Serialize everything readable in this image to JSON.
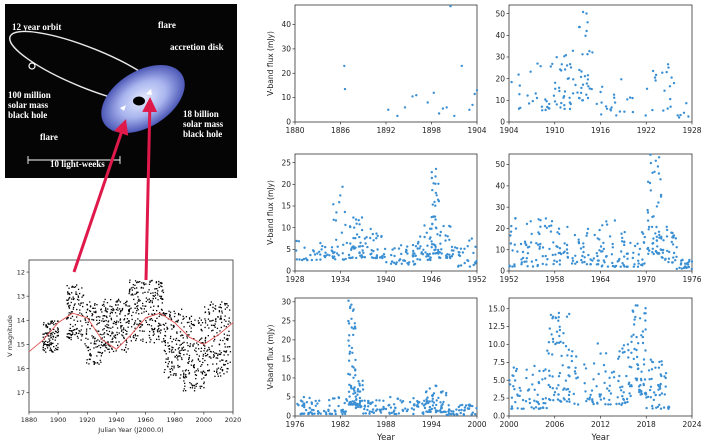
{
  "diagram": {
    "labels": {
      "orbit": "12 year orbit",
      "flare_top": "flare",
      "accretion_disk": "accretion disk",
      "small_bh_1": "100 million",
      "small_bh_2": "solar mass",
      "small_bh_3": "black hole",
      "big_bh_1": "18 billion",
      "big_bh_2": "solar mass",
      "big_bh_3": "black hole",
      "flare_left": "flare",
      "scale": "10 light-weeks"
    }
  },
  "colors": {
    "point": "#3a8fd3",
    "arrow": "#e0194b",
    "hist_point": "#000000",
    "model_curve": "#e05050",
    "diagram_bg": "#050505",
    "disk": "#9aa6e6"
  },
  "chart_data": [
    {
      "type": "scatter",
      "panel": "historical",
      "xlabel": "Julian Year (J2000.0)",
      "ylabel": "V magnitude",
      "xlim": [
        1880,
        2020
      ],
      "ylim": [
        17.8,
        11.5
      ],
      "y_inverted": true,
      "xticks": [
        "1880",
        "1900",
        "1920",
        "1940",
        "1960",
        "1980",
        "2000",
        "2020"
      ],
      "yticks": [
        "12",
        "13",
        "14",
        "15",
        "16",
        "17"
      ],
      "series": [
        {
          "kind": "points",
          "coverage": [
            [
              1889,
              1900,
              14.0,
              15.3
            ],
            [
              1905,
              1917,
              12.5,
              14.8
            ],
            [
              1918,
              1930,
              13.2,
              15.8
            ],
            [
              1930,
              1948,
              13.1,
              15.3
            ],
            [
              1948,
              1972,
              12.3,
              14.9
            ],
            [
              1972,
              1985,
              13.5,
              16.4
            ],
            [
              1985,
              2000,
              13.8,
              16.9
            ],
            [
              2000,
              2018,
              13.2,
              16.3
            ]
          ]
        },
        {
          "kind": "model_curve",
          "points": [
            [
              1880,
              15.3
            ],
            [
              1890,
              14.8
            ],
            [
              1900,
              14.1
            ],
            [
              1910,
              13.7
            ],
            [
              1920,
              13.9
            ],
            [
              1930,
              14.8
            ],
            [
              1940,
              15.2
            ],
            [
              1950,
              14.6
            ],
            [
              1960,
              13.9
            ],
            [
              1970,
              13.7
            ],
            [
              1980,
              14.1
            ],
            [
              1990,
              14.7
            ],
            [
              2000,
              15.0
            ],
            [
              2010,
              14.6
            ],
            [
              2020,
              14.1
            ]
          ]
        }
      ]
    },
    {
      "type": "scatter",
      "panel": "1880-1904",
      "xlim": [
        1880,
        1904
      ],
      "ylim": [
        0,
        48
      ],
      "ylabel": "V-band flux (mJy)",
      "xlabel": "",
      "xticks": [
        "1880",
        "1886",
        "1892",
        "1898",
        "1904"
      ],
      "yticks": [
        "0",
        "10",
        "20",
        "30",
        "40"
      ],
      "points": [
        [
          1886.5,
          23
        ],
        [
          1886.6,
          13.5
        ],
        [
          1892.3,
          5
        ],
        [
          1893.5,
          2.5
        ],
        [
          1894.5,
          6
        ],
        [
          1895.5,
          10.5
        ],
        [
          1896,
          11
        ],
        [
          1897.5,
          8
        ],
        [
          1898.3,
          12
        ],
        [
          1899.5,
          5.5
        ],
        [
          1900.5,
          47.5
        ],
        [
          1901,
          2.5
        ],
        [
          1902,
          23
        ],
        [
          1903,
          5
        ],
        [
          1903.4,
          7
        ],
        [
          1903.7,
          11.5
        ],
        [
          1904,
          13
        ],
        [
          1899,
          3.5
        ],
        [
          1900,
          6
        ]
      ]
    },
    {
      "type": "scatter",
      "panel": "1904-1928",
      "xlim": [
        1904,
        1928
      ],
      "ylim": [
        0,
        54
      ],
      "ylabel": "",
      "xlabel": "",
      "xticks": [
        "1904",
        "1910",
        "1916",
        "1922",
        "1928"
      ],
      "yticks": [
        "0",
        "10",
        "20",
        "30",
        "40",
        "50"
      ],
      "bands": [
        [
          1904,
          1906,
          4,
          22,
          6
        ],
        [
          1906,
          1910,
          5,
          33,
          20
        ],
        [
          1910,
          1913,
          6,
          33,
          34
        ],
        [
          1913,
          1915,
          10,
          52,
          30
        ],
        [
          1915,
          1919,
          3,
          22,
          16
        ],
        [
          1919,
          1922,
          3,
          12,
          6
        ],
        [
          1922,
          1926,
          5,
          27,
          18
        ],
        [
          1926,
          1928,
          2,
          10,
          6
        ]
      ]
    },
    {
      "type": "scatter",
      "panel": "1928-1952",
      "xlim": [
        1928,
        1952
      ],
      "ylim": [
        0,
        27
      ],
      "ylabel": "V-band flux (mJy)",
      "xlabel": "",
      "xticks": [
        "1928",
        "1934",
        "1940",
        "1946",
        "1952"
      ],
      "yticks": [
        "0",
        "5",
        "10",
        "15",
        "20",
        "25"
      ],
      "bands": [
        [
          1928,
          1933,
          2.5,
          7,
          35
        ],
        [
          1933,
          1935,
          2.5,
          20,
          25
        ],
        [
          1935,
          1937,
          3,
          13,
          40
        ],
        [
          1937,
          1940,
          3,
          10,
          35
        ],
        [
          1940,
          1944,
          1.5,
          6,
          40
        ],
        [
          1944,
          1946,
          2.5,
          11,
          30
        ],
        [
          1946,
          1947,
          4,
          26,
          40
        ],
        [
          1947,
          1949,
          3,
          12,
          30
        ],
        [
          1949,
          1952,
          1,
          8,
          25
        ]
      ]
    },
    {
      "type": "scatter",
      "panel": "1952-1976",
      "xlim": [
        1952,
        1976
      ],
      "ylim": [
        0,
        55
      ],
      "ylabel": "",
      "xlabel": "",
      "xticks": [
        "1952",
        "1958",
        "1964",
        "1970",
        "1976"
      ],
      "yticks": [
        "0",
        "10",
        "20",
        "30",
        "40",
        "50"
      ],
      "bands": [
        [
          1952,
          1956,
          2,
          26,
          45
        ],
        [
          1956,
          1960,
          3,
          27,
          45
        ],
        [
          1960,
          1964,
          3,
          21,
          40
        ],
        [
          1964,
          1967,
          2,
          25,
          35
        ],
        [
          1967,
          1970,
          2,
          20,
          35
        ],
        [
          1970,
          1972,
          8,
          55,
          55
        ],
        [
          1972,
          1974,
          4,
          24,
          30
        ],
        [
          1974,
          1976,
          1,
          6,
          25
        ]
      ]
    },
    {
      "type": "scatter",
      "panel": "1976-2000",
      "xlim": [
        1976,
        2000
      ],
      "ylim": [
        0,
        31
      ],
      "ylabel": "V-band flux (mJy)",
      "xlabel": "Year",
      "xticks": [
        "1976",
        "1982",
        "1988",
        "1994",
        "2000"
      ],
      "yticks": [
        "0",
        "5",
        "10",
        "15",
        "20",
        "25",
        "30"
      ],
      "bands": [
        [
          1976,
          1983,
          0.5,
          5,
          70
        ],
        [
          1983,
          1984,
          3,
          31,
          60
        ],
        [
          1984,
          1985,
          2,
          10,
          30
        ],
        [
          1985,
          1993,
          0.5,
          5,
          80
        ],
        [
          1993,
          1996,
          1,
          8,
          60
        ],
        [
          1996,
          2000,
          0.3,
          3,
          40
        ]
      ]
    },
    {
      "type": "scatter",
      "panel": "2000-2024",
      "xlim": [
        2000,
        2024
      ],
      "ylim": [
        0,
        16.5
      ],
      "ylabel": "",
      "xlabel": "Year",
      "xticks": [
        "2000",
        "2006",
        "2012",
        "2018",
        "2024"
      ],
      "yticks": [
        "0.0",
        "2.5",
        "5.0",
        "7.5",
        "10.0",
        "12.5",
        "15.0"
      ],
      "bands": [
        [
          2000,
          2005,
          1,
          7,
          60
        ],
        [
          2005,
          2008,
          2,
          14.5,
          70
        ],
        [
          2008,
          2016,
          1.5,
          10.5,
          90
        ],
        [
          2016,
          2018,
          3,
          16.5,
          60
        ],
        [
          2018,
          2021,
          1,
          8,
          50
        ]
      ]
    }
  ]
}
